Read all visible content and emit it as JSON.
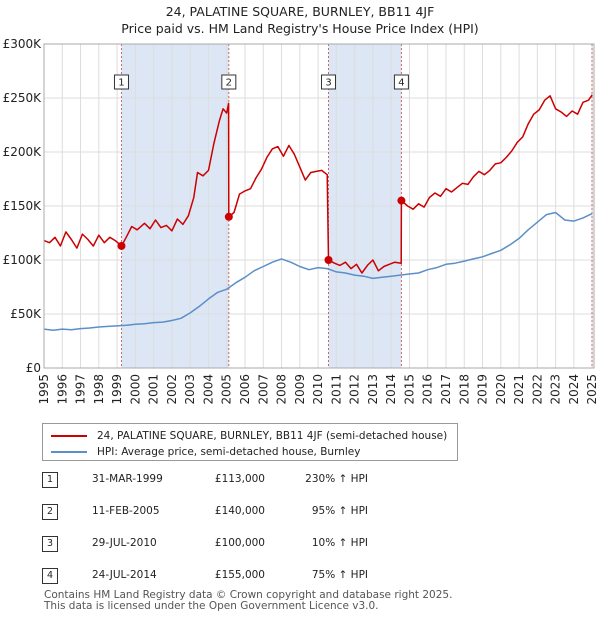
{
  "chart_data": {
    "type": "line",
    "title": "24, PALATINE SQUARE, BURNLEY, BB11 4JF",
    "subtitle": "Price paid vs. HM Land Registry's House Price Index (HPI)",
    "xlim": [
      1995,
      2025.1
    ],
    "ylim": [
      0,
      300000
    ],
    "xticks": [
      "1995",
      "1996",
      "1997",
      "1998",
      "1999",
      "2000",
      "2001",
      "2002",
      "2003",
      "2004",
      "2005",
      "2006",
      "2007",
      "2008",
      "2009",
      "2010",
      "2011",
      "2012",
      "2013",
      "2014",
      "2015",
      "2016",
      "2017",
      "2018",
      "2019",
      "2020",
      "2021",
      "2022",
      "2023",
      "2024",
      "2025"
    ],
    "yticks": [
      {
        "value": 0,
        "label": "£0"
      },
      {
        "value": 50000,
        "label": "£50K"
      },
      {
        "value": 100000,
        "label": "£100K"
      },
      {
        "value": 150000,
        "label": "£150K"
      },
      {
        "value": 200000,
        "label": "£200K"
      },
      {
        "value": 250000,
        "label": "£250K"
      },
      {
        "value": 300000,
        "label": "£300K"
      }
    ],
    "grid": true,
    "colors": {
      "property": "#cc0000",
      "hpi": "#5b8fc7",
      "shade": "#dce6f5",
      "grid": "#dddddd"
    },
    "series": [
      {
        "name": "24, PALATINE SQUARE, BURNLEY, BB11 4JF (semi-detached house)",
        "color": "#cc0000",
        "points": [
          [
            1995.0,
            118000
          ],
          [
            1995.3,
            116000
          ],
          [
            1995.6,
            121000
          ],
          [
            1995.9,
            113000
          ],
          [
            1996.2,
            126000
          ],
          [
            1996.5,
            119000
          ],
          [
            1996.8,
            111000
          ],
          [
            1997.1,
            124000
          ],
          [
            1997.4,
            119000
          ],
          [
            1997.7,
            113000
          ],
          [
            1998.0,
            123000
          ],
          [
            1998.3,
            116000
          ],
          [
            1998.6,
            121000
          ],
          [
            1998.9,
            118000
          ],
          [
            1999.24,
            113000
          ],
          [
            1999.5,
            121000
          ],
          [
            1999.8,
            131000
          ],
          [
            2000.1,
            128000
          ],
          [
            2000.5,
            134000
          ],
          [
            2000.8,
            129000
          ],
          [
            2001.1,
            137000
          ],
          [
            2001.4,
            130000
          ],
          [
            2001.7,
            132000
          ],
          [
            2002.0,
            127000
          ],
          [
            2002.3,
            138000
          ],
          [
            2002.6,
            133000
          ],
          [
            2002.9,
            141000
          ],
          [
            2003.2,
            158000
          ],
          [
            2003.4,
            181000
          ],
          [
            2003.7,
            178000
          ],
          [
            2004.0,
            183000
          ],
          [
            2004.3,
            208000
          ],
          [
            2004.6,
            229000
          ],
          [
            2004.8,
            240000
          ],
          [
            2005.0,
            236000
          ],
          [
            2005.1,
            245000
          ],
          [
            2005.115,
            140000
          ],
          [
            2005.4,
            144000
          ],
          [
            2005.7,
            161000
          ],
          [
            2006.0,
            164000
          ],
          [
            2006.3,
            166000
          ],
          [
            2006.6,
            176000
          ],
          [
            2006.9,
            184000
          ],
          [
            2007.2,
            195000
          ],
          [
            2007.5,
            203000
          ],
          [
            2007.8,
            205000
          ],
          [
            2008.1,
            196000
          ],
          [
            2008.4,
            206000
          ],
          [
            2008.7,
            198000
          ],
          [
            2009.0,
            186000
          ],
          [
            2009.3,
            174000
          ],
          [
            2009.6,
            181000
          ],
          [
            2009.9,
            182000
          ],
          [
            2010.2,
            183000
          ],
          [
            2010.5,
            179000
          ],
          [
            2010.57,
            100000
          ],
          [
            2010.9,
            97000
          ],
          [
            2011.2,
            95000
          ],
          [
            2011.5,
            98000
          ],
          [
            2011.8,
            92000
          ],
          [
            2012.1,
            96000
          ],
          [
            2012.4,
            88000
          ],
          [
            2012.7,
            95000
          ],
          [
            2013.0,
            100000
          ],
          [
            2013.3,
            90000
          ],
          [
            2013.6,
            94000
          ],
          [
            2013.9,
            96000
          ],
          [
            2014.2,
            98000
          ],
          [
            2014.55,
            97000
          ],
          [
            2014.56,
            155000
          ],
          [
            2014.9,
            150000
          ],
          [
            2015.2,
            147000
          ],
          [
            2015.5,
            152000
          ],
          [
            2015.8,
            149000
          ],
          [
            2016.1,
            158000
          ],
          [
            2016.4,
            162000
          ],
          [
            2016.7,
            159000
          ],
          [
            2017.0,
            166000
          ],
          [
            2017.3,
            163000
          ],
          [
            2017.6,
            167000
          ],
          [
            2017.9,
            171000
          ],
          [
            2018.2,
            170000
          ],
          [
            2018.5,
            177000
          ],
          [
            2018.8,
            182000
          ],
          [
            2019.1,
            179000
          ],
          [
            2019.4,
            183000
          ],
          [
            2019.7,
            189000
          ],
          [
            2020.0,
            190000
          ],
          [
            2020.3,
            195000
          ],
          [
            2020.6,
            201000
          ],
          [
            2020.9,
            209000
          ],
          [
            2021.2,
            214000
          ],
          [
            2021.5,
            226000
          ],
          [
            2021.8,
            235000
          ],
          [
            2022.1,
            239000
          ],
          [
            2022.4,
            248000
          ],
          [
            2022.7,
            252000
          ],
          [
            2023.0,
            240000
          ],
          [
            2023.3,
            237000
          ],
          [
            2023.6,
            233000
          ],
          [
            2023.9,
            238000
          ],
          [
            2024.2,
            235000
          ],
          [
            2024.5,
            246000
          ],
          [
            2024.8,
            248000
          ],
          [
            2025.0,
            253000
          ]
        ]
      },
      {
        "name": "HPI: Average price, semi-detached house, Burnley",
        "color": "#5b8fc7",
        "points": [
          [
            1995.0,
            36000
          ],
          [
            1995.5,
            35000
          ],
          [
            1996.0,
            36000
          ],
          [
            1996.5,
            35500
          ],
          [
            1997.0,
            36500
          ],
          [
            1997.5,
            37000
          ],
          [
            1998.0,
            38000
          ],
          [
            1998.5,
            38500
          ],
          [
            1999.0,
            39000
          ],
          [
            1999.5,
            39500
          ],
          [
            2000.0,
            40500
          ],
          [
            2000.5,
            41000
          ],
          [
            2001.0,
            42000
          ],
          [
            2001.5,
            42500
          ],
          [
            2002.0,
            44000
          ],
          [
            2002.5,
            46000
          ],
          [
            2003.0,
            51000
          ],
          [
            2003.5,
            57000
          ],
          [
            2004.0,
            64000
          ],
          [
            2004.5,
            70000
          ],
          [
            2005.0,
            73000
          ],
          [
            2005.5,
            79000
          ],
          [
            2006.0,
            84000
          ],
          [
            2006.5,
            90000
          ],
          [
            2007.0,
            94000
          ],
          [
            2007.5,
            98000
          ],
          [
            2008.0,
            101000
          ],
          [
            2008.5,
            98000
          ],
          [
            2009.0,
            94000
          ],
          [
            2009.5,
            91000
          ],
          [
            2010.0,
            93000
          ],
          [
            2010.5,
            92000
          ],
          [
            2011.0,
            89000
          ],
          [
            2011.5,
            88000
          ],
          [
            2012.0,
            86000
          ],
          [
            2012.5,
            85000
          ],
          [
            2013.0,
            83000
          ],
          [
            2013.5,
            84000
          ],
          [
            2014.0,
            85000
          ],
          [
            2014.5,
            86000
          ],
          [
            2015.0,
            87000
          ],
          [
            2015.5,
            88000
          ],
          [
            2016.0,
            91000
          ],
          [
            2016.5,
            93000
          ],
          [
            2017.0,
            96000
          ],
          [
            2017.5,
            97000
          ],
          [
            2018.0,
            99000
          ],
          [
            2018.5,
            101000
          ],
          [
            2019.0,
            103000
          ],
          [
            2019.5,
            106000
          ],
          [
            2020.0,
            109000
          ],
          [
            2020.5,
            114000
          ],
          [
            2021.0,
            120000
          ],
          [
            2021.5,
            128000
          ],
          [
            2022.0,
            135000
          ],
          [
            2022.5,
            142000
          ],
          [
            2023.0,
            144000
          ],
          [
            2023.5,
            137000
          ],
          [
            2024.0,
            136000
          ],
          [
            2024.5,
            139000
          ],
          [
            2025.0,
            143000
          ]
        ]
      }
    ],
    "sales": [
      {
        "label": "1",
        "year": 1999.24,
        "price": 113000
      },
      {
        "label": "2",
        "year": 2005.115,
        "price": 140000
      },
      {
        "label": "3",
        "year": 2010.57,
        "price": 100000
      },
      {
        "label": "4",
        "year": 2014.56,
        "price": 155000
      }
    ],
    "shaded_ranges": [
      [
        1999.24,
        2005.115
      ],
      [
        2010.57,
        2014.56
      ]
    ]
  },
  "legend": {
    "property_label": "24, PALATINE SQUARE, BURNLEY, BB11 4JF (semi-detached house)",
    "hpi_label": "HPI: Average price, semi-detached house, Burnley"
  },
  "transactions": [
    {
      "num": "1",
      "date": "31-MAR-1999",
      "price": "£113,000",
      "hpi": "230% ↑ HPI"
    },
    {
      "num": "2",
      "date": "11-FEB-2005",
      "price": "£140,000",
      "hpi": "95% ↑ HPI"
    },
    {
      "num": "3",
      "date": "29-JUL-2010",
      "price": "£100,000",
      "hpi": "10% ↑ HPI"
    },
    {
      "num": "4",
      "date": "24-JUL-2014",
      "price": "£155,000",
      "hpi": "75% ↑ HPI"
    }
  ],
  "footer": {
    "line1": "Contains HM Land Registry data © Crown copyright and database right 2025.",
    "line2": "This data is licensed under the Open Government Licence v3.0."
  }
}
